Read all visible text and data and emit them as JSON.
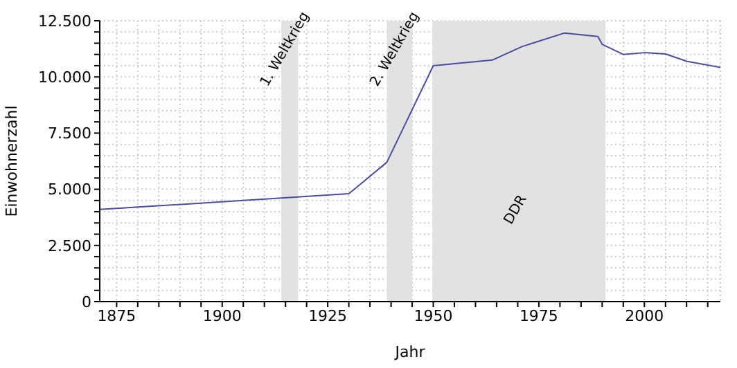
{
  "chart_data": {
    "type": "line",
    "xlabel": "Jahr",
    "ylabel": "Einwohnerzahl",
    "x": [
      1871,
      1930,
      1939,
      1950,
      1964,
      1971,
      1981,
      1989,
      1990,
      1995,
      2000,
      2005,
      2010,
      2018
    ],
    "series": [
      {
        "color": "#4b4ba0",
        "values": [
          4100,
          4800,
          6200,
          10500,
          10750,
          11350,
          11950,
          11800,
          11450,
          11000,
          11080,
          11020,
          10700,
          10420
        ]
      }
    ],
    "xlim": [
      1871,
      2018
    ],
    "xticks": [
      1875,
      {
        "value": 1880,
        "label": null
      },
      {
        "value": 1885,
        "label": null
      },
      {
        "value": 1890,
        "label": null
      },
      {
        "value": 1895,
        "label": null
      },
      1900,
      {
        "value": 1905,
        "label": null
      },
      {
        "value": 1910,
        "label": null
      },
      {
        "value": 1915,
        "label": null
      },
      {
        "value": 1920,
        "label": null
      },
      1925,
      {
        "value": 1930,
        "label": null
      },
      {
        "value": 1935,
        "label": null
      },
      {
        "value": 1940,
        "label": null
      },
      {
        "value": 1945,
        "label": null
      },
      1950,
      {
        "value": 1955,
        "label": null
      },
      {
        "value": 1960,
        "label": null
      },
      {
        "value": 1965,
        "label": null
      },
      {
        "value": 1970,
        "label": null
      },
      1975,
      {
        "value": 1980,
        "label": null
      },
      {
        "value": 1985,
        "label": null
      },
      {
        "value": 1990,
        "label": null
      },
      {
        "value": 1995,
        "label": null
      },
      2000,
      {
        "value": 2005,
        "label": null
      },
      {
        "value": 2010,
        "label": null
      },
      {
        "value": 2015,
        "label": null
      }
    ],
    "ylim": [
      0,
      12500
    ],
    "yticks": [
      0,
      {
        "value": 500,
        "label": null
      },
      {
        "value": 1000,
        "label": null
      },
      {
        "value": 1500,
        "label": null
      },
      {
        "value": 2000,
        "label": null
      },
      {
        "value": 2500,
        "label": "2.500"
      },
      {
        "value": 3000,
        "label": null
      },
      {
        "value": 3500,
        "label": null
      },
      {
        "value": 4000,
        "label": null
      },
      {
        "value": 4500,
        "label": null
      },
      {
        "value": 5000,
        "label": "5.000"
      },
      {
        "value": 5500,
        "label": null
      },
      {
        "value": 6000,
        "label": null
      },
      {
        "value": 6500,
        "label": null
      },
      {
        "value": 7000,
        "label": null
      },
      {
        "value": 7500,
        "label": "7.500"
      },
      {
        "value": 8000,
        "label": null
      },
      {
        "value": 8500,
        "label": null
      },
      {
        "value": 9000,
        "label": null
      },
      {
        "value": 9500,
        "label": null
      },
      {
        "value": 10000,
        "label": "10.000"
      },
      {
        "value": 10500,
        "label": null
      },
      {
        "value": 11000,
        "label": null
      },
      {
        "value": 11500,
        "label": null
      },
      {
        "value": 12000,
        "label": null
      },
      {
        "value": 12500,
        "label": "12.500"
      }
    ],
    "bands": [
      {
        "axis": "x",
        "from": 1914,
        "to": 1918,
        "label": "1. Weltkrieg",
        "color": "#e2e2e2"
      },
      {
        "axis": "x",
        "from": 1939,
        "to": 1945,
        "label": "2. Weltkrieg",
        "color": "#e2e2e2"
      },
      {
        "axis": "x",
        "from": 1949.8,
        "to": 1990.8,
        "label": "DDR",
        "color": "#e2e2e2"
      }
    ],
    "grid": true,
    "marker": "none",
    "line_style": "solid"
  }
}
